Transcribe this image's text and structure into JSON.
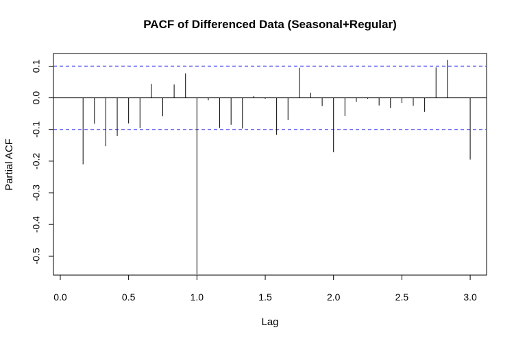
{
  "chart_data": {
    "type": "bar",
    "title": "PACF of Differenced Data (Seasonal+Regular)",
    "xlabel": "Lag",
    "ylabel": "Partial ACF",
    "xlim": [
      -0.05,
      3.12
    ],
    "ylim": [
      -0.56,
      0.14
    ],
    "x_ticks": [
      "0.0",
      "0.5",
      "1.0",
      "1.5",
      "2.0",
      "2.5",
      "3.0"
    ],
    "y_ticks": [
      "-0.5",
      "-0.4",
      "-0.3",
      "-0.2",
      "-0.1",
      "0.0",
      "0.1"
    ],
    "confidence_bound": 0.1,
    "confidence_color": "#5555ee",
    "lags": [
      0.0833,
      0.1667,
      0.25,
      0.3333,
      0.4167,
      0.5,
      0.5833,
      0.6667,
      0.75,
      0.8333,
      0.9167,
      1.0,
      1.0833,
      1.1667,
      1.25,
      1.3333,
      1.4167,
      1.5,
      1.5833,
      1.6667,
      1.75,
      1.8333,
      1.9167,
      2.0,
      2.0833,
      2.1667,
      2.25,
      2.3333,
      2.4167,
      2.5,
      2.5833,
      2.6667,
      2.75,
      2.8333,
      2.9167,
      3.0
    ],
    "values": [
      0.0,
      -0.21,
      -0.082,
      -0.153,
      -0.12,
      -0.081,
      -0.096,
      0.044,
      -0.058,
      0.042,
      0.077,
      -0.557,
      -0.008,
      -0.095,
      -0.085,
      -0.097,
      0.006,
      -0.003,
      -0.117,
      -0.07,
      0.095,
      0.016,
      -0.026,
      -0.172,
      -0.057,
      -0.013,
      -0.003,
      -0.024,
      -0.032,
      -0.016,
      -0.025,
      -0.044,
      0.096,
      0.12,
      0.0,
      -0.195
    ]
  }
}
